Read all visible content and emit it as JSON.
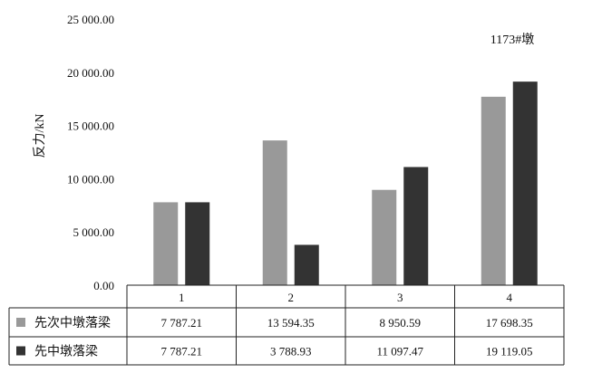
{
  "chart_data": {
    "type": "bar",
    "title": "",
    "annotation": "1173#墩",
    "ylabel": "反力/kN",
    "xlabel": "",
    "ylim": [
      0,
      25000
    ],
    "y_ticks": [
      "25 000.00",
      "20 000.00",
      "15 000.00",
      "10 000.00",
      "5 000.00",
      "0.00"
    ],
    "y_tick_values": [
      25000,
      20000,
      15000,
      10000,
      5000,
      0
    ],
    "categories": [
      "1",
      "2",
      "3",
      "4"
    ],
    "grid": false,
    "legend": "data-table-bottom",
    "series": [
      {
        "name": "先次中墩落梁",
        "color": "#999999",
        "values": [
          7787.21,
          13594.35,
          8950.59,
          17698.35
        ],
        "labels": [
          "7 787.21",
          "13 594.35",
          "8 950.59",
          "17 698.35"
        ]
      },
      {
        "name": "先中墩落梁",
        "color": "#333333",
        "values": [
          7787.21,
          3788.93,
          11097.47,
          19119.05
        ],
        "labels": [
          "7 787.21",
          "3 788.93",
          "11 097.47",
          "19 119.05"
        ]
      }
    ]
  }
}
